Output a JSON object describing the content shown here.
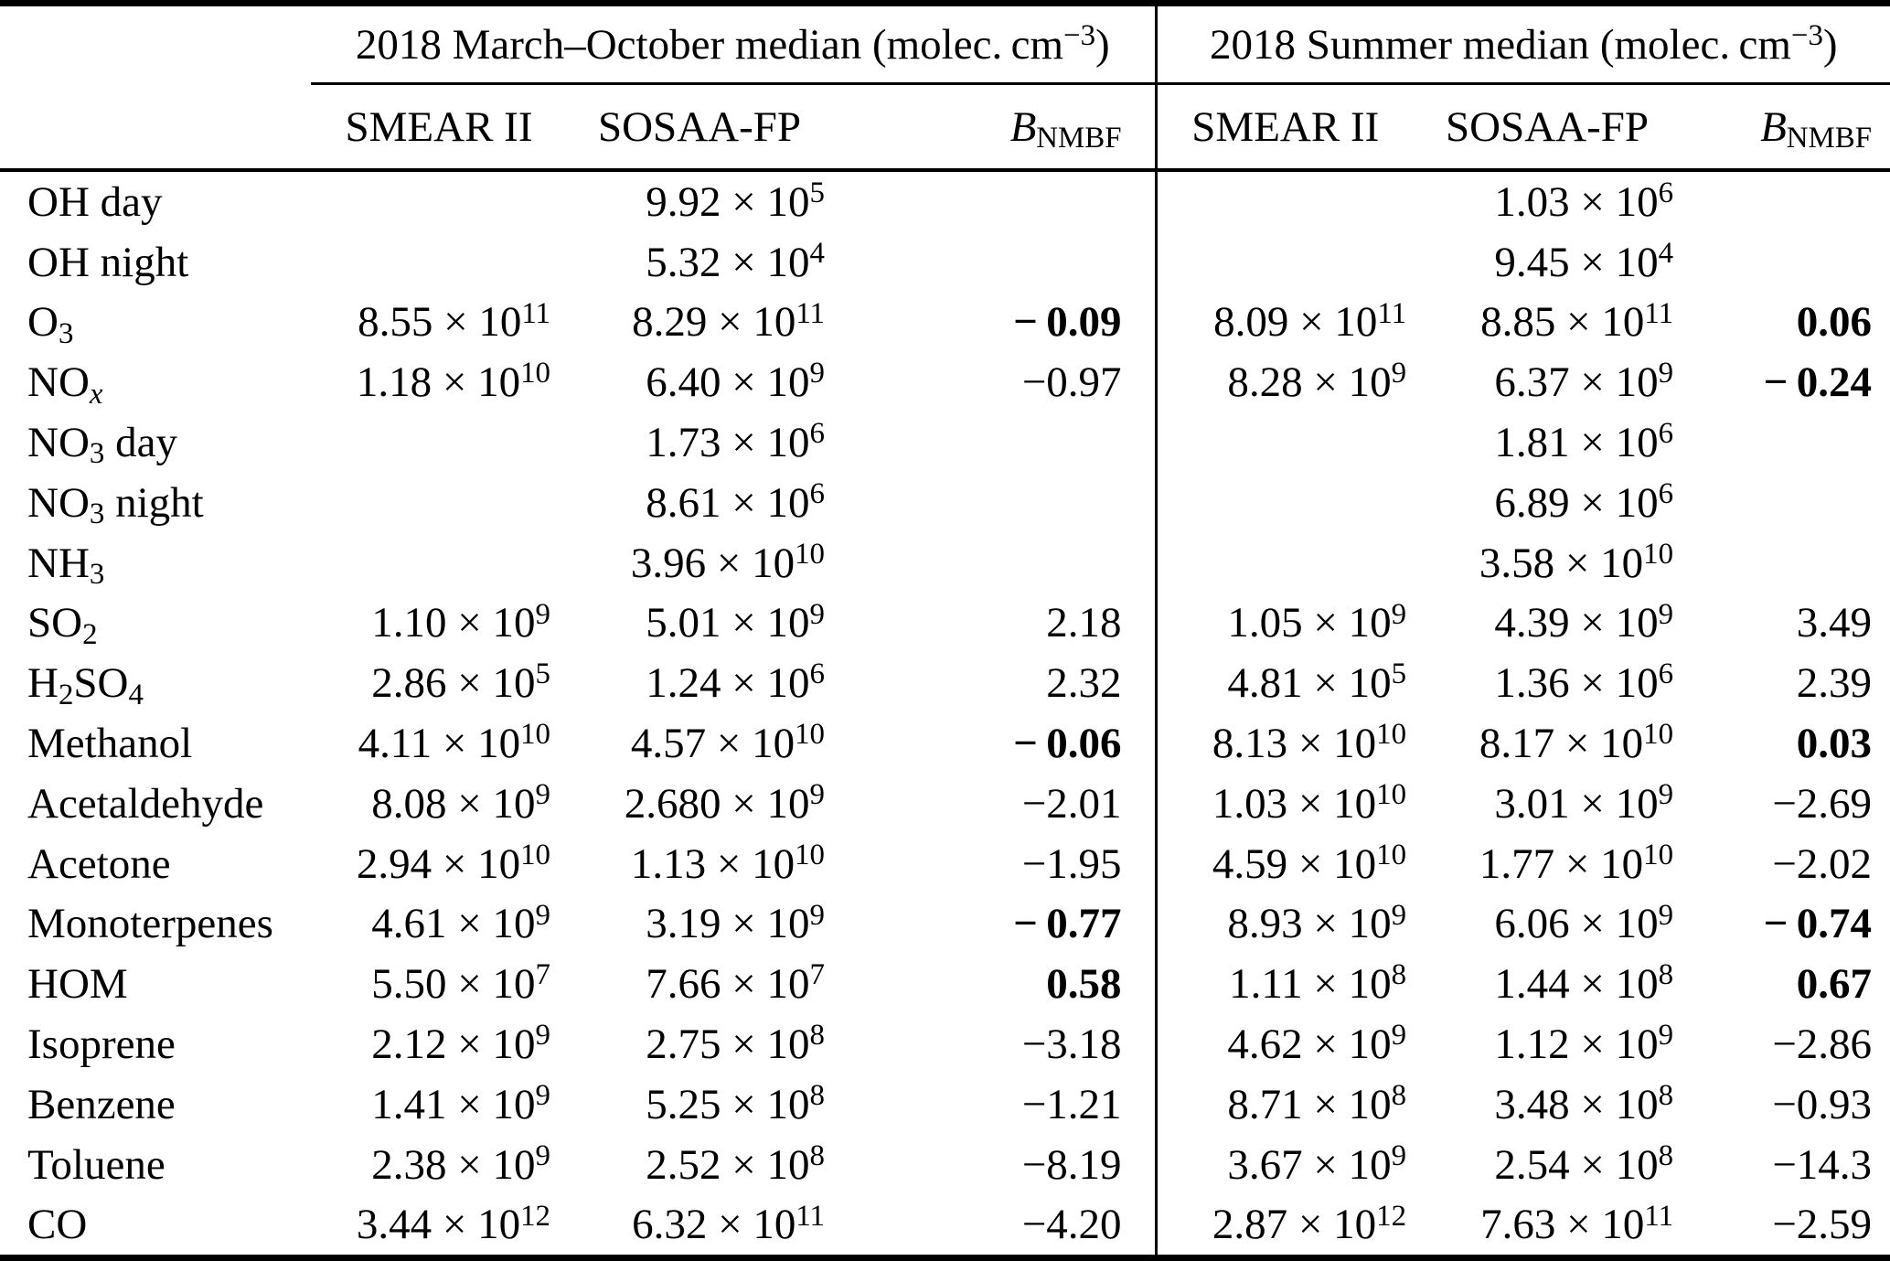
{
  "colors": {
    "text": "#000000",
    "rule": "#000000",
    "background": "#ffffff"
  },
  "table": {
    "col_groups": [
      {
        "label": "2018 March–October median (molec. cm^{−3})"
      },
      {
        "label": "2018 Summer median (molec. cm^{−3})"
      }
    ],
    "sub_headers": [
      "SMEAR II",
      "SOSAA-FP",
      "*B*_{NMBF}",
      "SMEAR II",
      "SOSAA-FP",
      "*B*_{NMBF}"
    ],
    "rows": [
      {
        "label": "OH day",
        "cells": [
          "",
          "9.92 × 10^{5}",
          "",
          "",
          "1.03 × 10^{6}",
          ""
        ]
      },
      {
        "label": "OH night",
        "cells": [
          "",
          "5.32 × 10^{4}",
          "",
          "",
          "9.45 × 10^{4}",
          ""
        ]
      },
      {
        "label": "O_{3}",
        "cells": [
          "8.55 × 10^{11}",
          "8.29 × 10^{11}",
          "**− 0.09**",
          "8.09 × 10^{11}",
          "8.85 × 10^{11}",
          "**0.06**"
        ]
      },
      {
        "label": "NO_{*x*}",
        "cells": [
          "1.18 × 10^{10}",
          "6.40 × 10^{9}",
          "−0.97",
          "8.28 × 10^{9}",
          "6.37 × 10^{9}",
          "**− 0.24**"
        ]
      },
      {
        "label": "NO_{3} day",
        "cells": [
          "",
          "1.73 × 10^{6}",
          "",
          "",
          "1.81 × 10^{6}",
          ""
        ]
      },
      {
        "label": "NO_{3} night",
        "cells": [
          "",
          "8.61 × 10^{6}",
          "",
          "",
          "6.89 × 10^{6}",
          ""
        ]
      },
      {
        "label": "NH_{3}",
        "cells": [
          "",
          "3.96 × 10^{10}",
          "",
          "",
          "3.58 × 10^{10}",
          ""
        ]
      },
      {
        "label": "SO_{2}",
        "cells": [
          "1.10 × 10^{9}",
          "5.01 × 10^{9}",
          "2.18",
          "1.05 × 10^{9}",
          "4.39 × 10^{9}",
          "3.49"
        ]
      },
      {
        "label": "H_{2}SO_{4}",
        "cells": [
          "2.86 × 10^{5}",
          "1.24 × 10^{6}",
          "2.32",
          "4.81 × 10^{5}",
          "1.36 × 10^{6}",
          "2.39"
        ]
      },
      {
        "label": "Methanol",
        "cells": [
          "4.11 × 10^{10}",
          "4.57 × 10^{10}",
          "**− 0.06**",
          "8.13 × 10^{10}",
          "8.17 × 10^{10}",
          "**0.03**"
        ]
      },
      {
        "label": "Acetaldehyde",
        "cells": [
          "8.08 × 10^{9}",
          "2.680 × 10^{9}",
          "−2.01",
          "1.03 × 10^{10}",
          "3.01 × 10^{9}",
          "−2.69"
        ]
      },
      {
        "label": "Acetone",
        "cells": [
          "2.94 × 10^{10}",
          "1.13 × 10^{10}",
          "−1.95",
          "4.59 × 10^{10}",
          "1.77 × 10^{10}",
          "−2.02"
        ]
      },
      {
        "label": "Monoterpenes",
        "cells": [
          "4.61 × 10^{9}",
          "3.19 × 10^{9}",
          "**− 0.77**",
          "8.93 × 10^{9}",
          "6.06 × 10^{9}",
          "**− 0.74**"
        ]
      },
      {
        "label": "HOM",
        "cells": [
          "5.50 × 10^{7}",
          "7.66 × 10^{7}",
          "**0.58**",
          "1.11 × 10^{8}",
          "1.44 × 10^{8}",
          "**0.67**"
        ]
      },
      {
        "label": "Isoprene",
        "cells": [
          "2.12 × 10^{9}",
          "2.75 × 10^{8}",
          "−3.18",
          "4.62 × 10^{9}",
          "1.12 × 10^{9}",
          "−2.86"
        ]
      },
      {
        "label": "Benzene",
        "cells": [
          "1.41 × 10^{9}",
          "5.25 × 10^{8}",
          "−1.21",
          "8.71 × 10^{8}",
          "3.48 × 10^{8}",
          "−0.93"
        ]
      },
      {
        "label": "Toluene",
        "cells": [
          "2.38 × 10^{9}",
          "2.52 × 10^{8}",
          "−8.19",
          "3.67 × 10^{9}",
          "2.54 × 10^{8}",
          "−14.3"
        ]
      },
      {
        "label": "CO",
        "cells": [
          "3.44 × 10^{12}",
          "6.32 × 10^{11}",
          "−4.20",
          "2.87 × 10^{12}",
          "7.63 × 10^{11}",
          "−2.59"
        ]
      }
    ]
  }
}
